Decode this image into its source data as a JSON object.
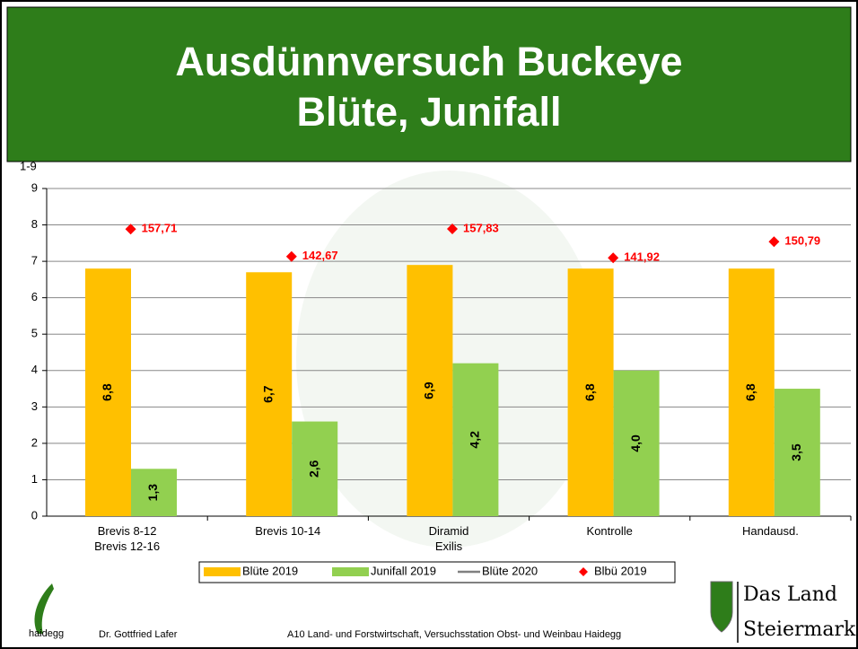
{
  "title": [
    "Ausdünnversuch Buckeye",
    "Blüte, Junifall"
  ],
  "chart_data": {
    "type": "bar",
    "ylabel": "1-9",
    "categories": [
      "Brevis 8-12\nBrevis 12-16",
      "Brevis 10-14",
      "Diramid\nExilis",
      "Kontrolle",
      "Handausd."
    ],
    "series": [
      {
        "name": "Blüte 2019",
        "color": "#ffc000",
        "values": [
          6.8,
          6.7,
          6.9,
          6.8,
          6.8
        ],
        "value_labels": [
          "6,8",
          "6,7",
          "6,9",
          "6,8",
          "6,8"
        ]
      },
      {
        "name": "Junifall 2019",
        "color": "#92d050",
        "values": [
          1.3,
          2.6,
          4.2,
          4.0,
          3.5
        ],
        "value_labels": [
          "1,3",
          "2,6",
          "4,2",
          "4,0",
          "3,5"
        ]
      },
      {
        "name": "Blüte 2020",
        "color": "#808080",
        "type": "line",
        "values": [
          null,
          null,
          null,
          null,
          null
        ]
      },
      {
        "name": "Blbü 2019",
        "color": "#ff0000",
        "type": "scatter",
        "axis": "y2",
        "values": [
          157.71,
          142.67,
          157.83,
          141.92,
          150.79
        ],
        "value_labels": [
          "157,71",
          "142,67",
          "157,83",
          "141,92",
          "150,79"
        ]
      }
    ],
    "ylim": [
      0,
      9
    ],
    "yticks": [
      0,
      1,
      2,
      3,
      4,
      5,
      6,
      7,
      8,
      9
    ],
    "y2lim": [
      0,
      180
    ],
    "grid": true,
    "legend": "bottom"
  },
  "footer": {
    "logo_text": "haidegg",
    "author": "Dr. Gottfried Lafer",
    "institution": "A10 Land- und Forstwirtschaft, Versuchsstation Obst- und Weinbau Haidegg",
    "brand": [
      "Das Land",
      "Steiermark"
    ]
  }
}
